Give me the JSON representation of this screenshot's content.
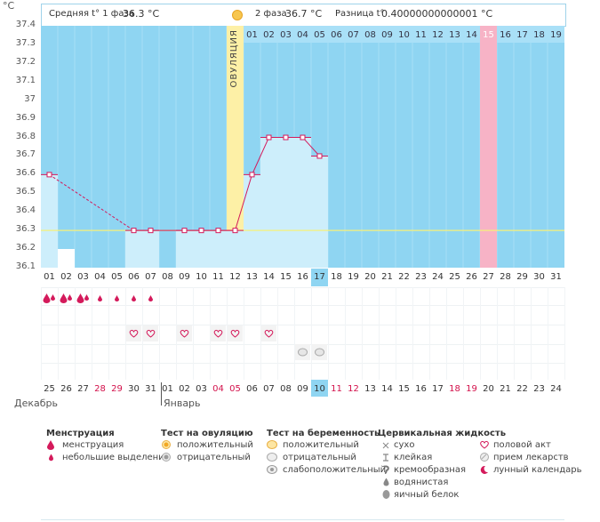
{
  "header": {
    "unit": "°C",
    "phase1_label": "Средняя t° 1 фаза",
    "phase1_value": "36.3 °C",
    "phase2_label": "2 фаза",
    "phase2_value": "36.7 °C",
    "diff_label": "Разница t°",
    "diff_value": "0.40000000000001 °C",
    "ovulation_label": "ОВУЛЯЦИЯ"
  },
  "colors": {
    "plot_bg": "#8fd5f2",
    "bar": "#cdeefb",
    "ovulation": "#fdf0a6",
    "highlight_col": "#f7b3c6",
    "line": "#d41a5b",
    "avg_line": "#f5f07a",
    "weekend": "#d3114b"
  },
  "chart_data": {
    "type": "line",
    "ylabel": "°C",
    "ylim": [
      36.1,
      37.4
    ],
    "yticks": [
      "37.4",
      "37.3",
      "37.2",
      "37.1",
      "37",
      "36.9",
      "36.8",
      "36.7",
      "36.6",
      "36.5",
      "36.4",
      "36.3",
      "36.2",
      "36.1"
    ],
    "average_line": 36.3,
    "cycle_days": [
      "01",
      "02",
      "03",
      "04",
      "05",
      "06",
      "07",
      "08",
      "09",
      "10",
      "11",
      "12",
      "13",
      "14",
      "15",
      "16",
      "17",
      "18",
      "19",
      "20",
      "21",
      "22",
      "23",
      "24",
      "25",
      "26",
      "27",
      "28",
      "29",
      "30",
      "31"
    ],
    "after_ovulation_days": [
      "01",
      "02",
      "03",
      "04",
      "05",
      "06",
      "07",
      "08",
      "09",
      "10",
      "11",
      "12",
      "13",
      "14",
      "15",
      "16",
      "17",
      "18",
      "19"
    ],
    "temperatures": [
      36.6,
      null,
      null,
      null,
      null,
      36.3,
      36.3,
      null,
      36.3,
      36.3,
      36.3,
      36.3,
      36.6,
      36.8,
      36.8,
      36.8,
      36.7,
      null,
      null,
      null,
      null,
      null,
      null,
      null,
      null,
      null,
      null,
      null,
      null,
      null,
      null
    ],
    "dashed_segments": [
      [
        1,
        6
      ]
    ],
    "ovulation_day": 12,
    "highlight_post_day": "15",
    "current_day": "17",
    "calendar_dates": [
      "25",
      "26",
      "27",
      "28",
      "29",
      "30",
      "31",
      "01",
      "02",
      "03",
      "04",
      "05",
      "06",
      "07",
      "08",
      "09",
      "10",
      "11",
      "12",
      "13",
      "14",
      "15",
      "16",
      "17",
      "18",
      "19",
      "20",
      "21",
      "22",
      "23",
      "24"
    ],
    "weekend_dates": [
      3,
      4,
      10,
      11,
      17,
      18,
      24,
      25
    ],
    "today_index": 16,
    "month_left": "Декабрь",
    "month_right": "Январь",
    "menstruation_big": [
      1,
      2,
      3
    ],
    "menstruation_small": [
      4,
      5,
      6,
      7
    ],
    "intercourse": [
      6,
      7,
      9,
      11,
      12,
      14
    ],
    "pregnancy_negative": [
      16,
      17
    ],
    "moon_day": 2
  },
  "legend": {
    "menstruation": {
      "title": "Менструация",
      "items": [
        {
          "icon": "drop-big-icon",
          "label": "менструация"
        },
        {
          "icon": "drop-small-icon",
          "label": "небольшие выделения"
        }
      ]
    },
    "ovulation_test": {
      "title": "Тест на овуляцию",
      "items": [
        {
          "icon": "positive-icon",
          "label": "положительный"
        },
        {
          "icon": "negative-icon",
          "label": "отрицательный"
        }
      ]
    },
    "pregnancy_test": {
      "title": "Тест на беременность",
      "items": [
        {
          "icon": "positive-icon",
          "label": "положительный"
        },
        {
          "icon": "negative-icon",
          "label": "отрицательный"
        },
        {
          "icon": "weak-positive-icon",
          "label": "слабоположительный"
        }
      ]
    },
    "cervical": {
      "title": "Цервикальная жидкость",
      "items": [
        {
          "icon": "dry-icon",
          "label": "сухо"
        },
        {
          "icon": "sticky-icon",
          "label": "клейкая"
        },
        {
          "icon": "creamy-icon",
          "label": "кремообразная"
        },
        {
          "icon": "watery-icon",
          "label": "водянистая"
        },
        {
          "icon": "egg-white-icon",
          "label": "яичный белок"
        }
      ]
    },
    "other": {
      "items": [
        {
          "icon": "heart-icon",
          "label": "половой акт"
        },
        {
          "icon": "pill-icon",
          "label": "прием лекарств"
        },
        {
          "icon": "moon-icon",
          "label": "лунный календарь"
        }
      ]
    }
  }
}
